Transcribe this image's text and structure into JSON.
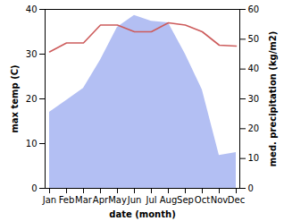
{
  "chart_data": {
    "type": "line",
    "x_label": "date (month)",
    "y_label": "max temp (C)",
    "y2_label": "med. precipitation (kg/m2)",
    "categories": [
      "Jan",
      "Feb",
      "Mar",
      "Apr",
      "May",
      "Jun",
      "Jul",
      "Aug",
      "Sep",
      "Oct",
      "Nov",
      "Dec"
    ],
    "ylim": [
      0,
      40
    ],
    "yticks": [
      0,
      10,
      20,
      30,
      40
    ],
    "y2lim": [
      0,
      60
    ],
    "y2ticks": [
      0,
      10,
      20,
      30,
      40,
      50,
      60
    ],
    "series": [
      {
        "name": "med. precipitation (kg/m2)",
        "type": "area",
        "axis": "y2",
        "color": "#b3bff3",
        "values": [
          25.5,
          29.5,
          33.5,
          43,
          54,
          58,
          56,
          55.5,
          45,
          33,
          11,
          12
        ]
      },
      {
        "name": "max temp (C)",
        "type": "line",
        "color": "#cd5c5c",
        "values": [
          30.5,
          32.5,
          32.5,
          36.5,
          36.5,
          35,
          35,
          37,
          36.5,
          35,
          32,
          31.8
        ]
      }
    ]
  }
}
